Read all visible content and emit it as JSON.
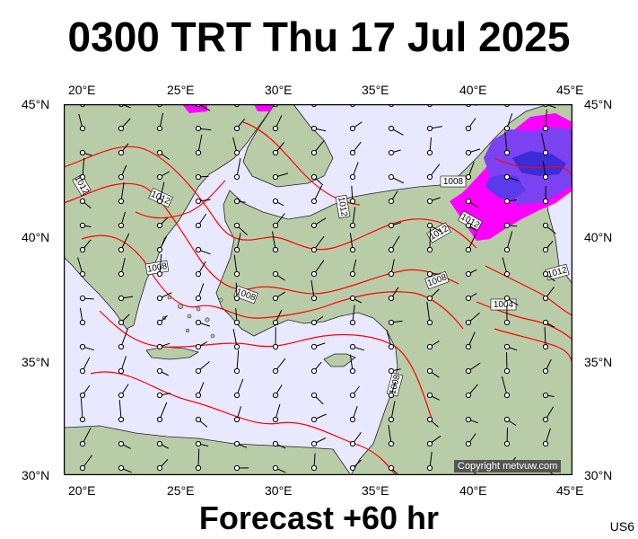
{
  "title": "0300 TRT Thu 17 Jul 2025",
  "footer": "Forecast +60 hr",
  "model_code": "US6",
  "copyright": "Copyright metvuw.com",
  "lon_labels": [
    "20°E",
    "25°E",
    "30°E",
    "35°E",
    "40°E",
    "45°E"
  ],
  "lat_labels": [
    "45°N",
    "40°N",
    "35°N",
    "30°N"
  ],
  "isobar_labels": [
    "1012",
    "1012",
    "1012",
    "1008",
    "1008",
    "1008",
    "1012",
    "1012",
    "1008",
    "1004",
    "1012",
    "1008"
  ],
  "colors": {
    "sea": "#e8e8ff",
    "land": "#b8cca8",
    "isobar": "#ff0000",
    "precip": "#ff00ff",
    "precip_heavy": "#3a2cd9",
    "frame": "#000000"
  }
}
